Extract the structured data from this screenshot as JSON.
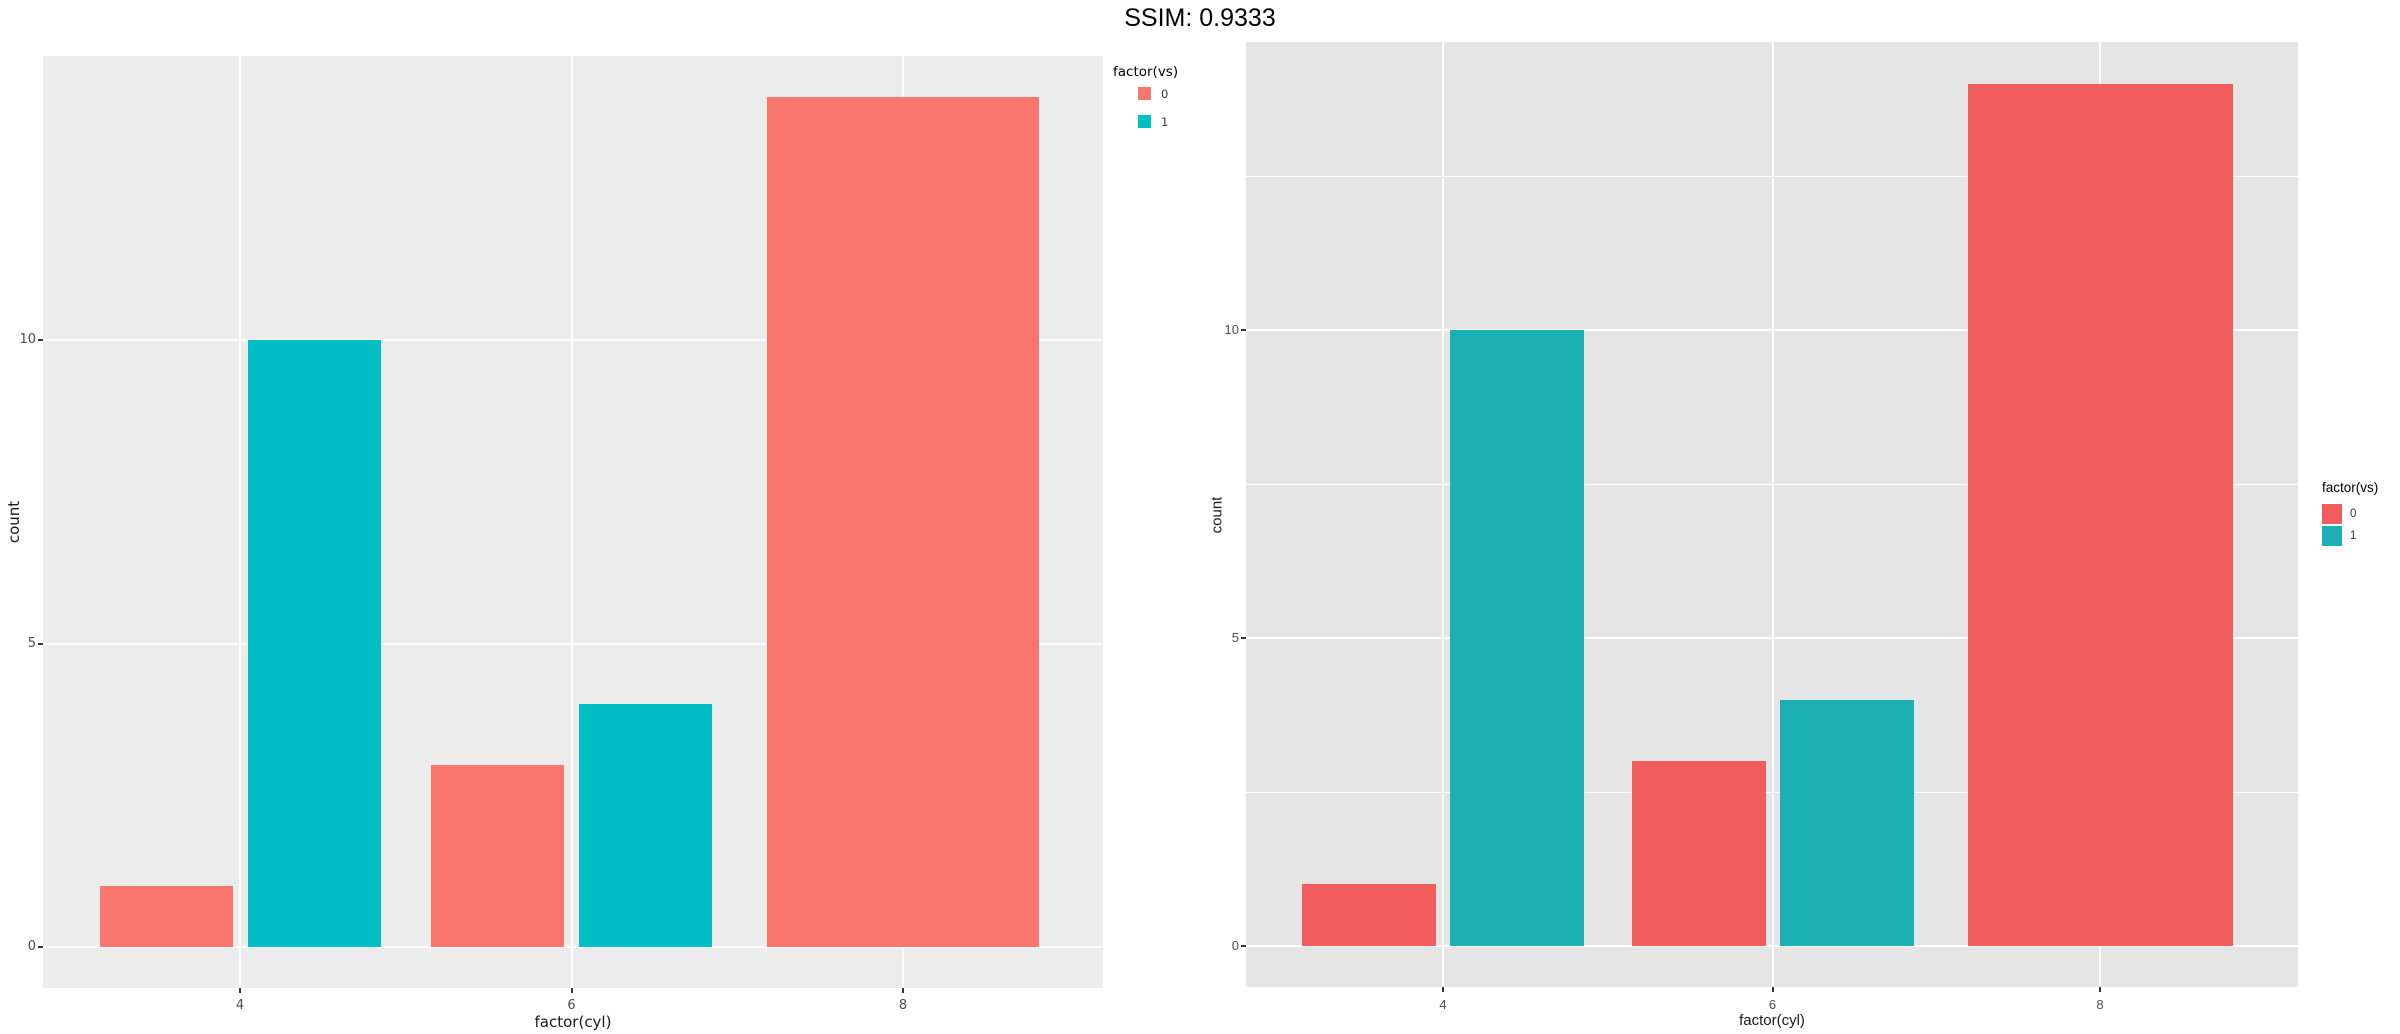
{
  "title": "SSIM: 0.9333",
  "chart_data": [
    {
      "type": "bar",
      "panel_side": "left",
      "xlabel": "factor(cyl)",
      "ylabel": "count",
      "legend_title": "factor(vs)",
      "legend_position": "top-right",
      "categories": [
        "4",
        "6",
        "8"
      ],
      "series": [
        {
          "name": "0",
          "color": "#F8766D",
          "values": [
            1,
            3,
            14
          ]
        },
        {
          "name": "1",
          "color": "#00BFC4",
          "values": [
            10,
            4,
            0
          ]
        }
      ],
      "y_ticks": [
        0,
        5,
        10
      ],
      "y_minor": [],
      "ylim": [
        -0.7,
        14.7
      ],
      "grid": "major-only",
      "panel_bg": "#ECECEC",
      "grid_color": "#FFFFFF"
    },
    {
      "type": "bar",
      "panel_side": "right",
      "xlabel": "factor(cyl)",
      "ylabel": "count",
      "legend_title": "factor(vs)",
      "legend_position": "center-right",
      "categories": [
        "4",
        "6",
        "8"
      ],
      "series": [
        {
          "name": "0",
          "color": "#F15C5C",
          "values": [
            1,
            3,
            14
          ]
        },
        {
          "name": "1",
          "color": "#1CB0B5",
          "values": [
            10,
            4,
            0
          ]
        }
      ],
      "y_ticks": [
        0,
        5,
        10
      ],
      "y_minor": [
        2.5,
        7.5,
        12.5
      ],
      "ylim": [
        -0.7,
        14.7
      ],
      "grid": "major-and-minor",
      "panel_bg": "#E5E5E5",
      "grid_color": "#FFFFFF"
    }
  ]
}
